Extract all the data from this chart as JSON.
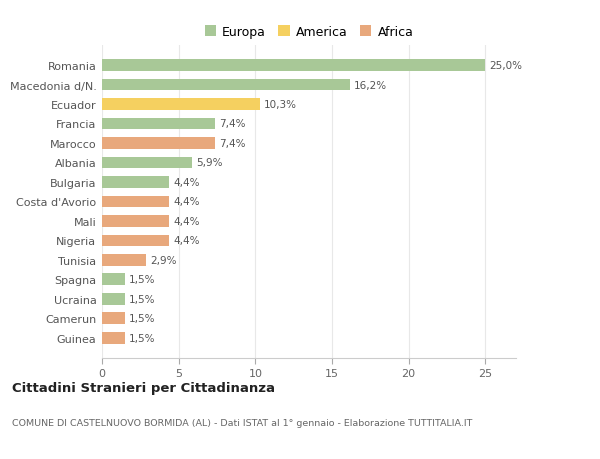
{
  "categories": [
    "Guinea",
    "Camerun",
    "Ucraina",
    "Spagna",
    "Tunisia",
    "Nigeria",
    "Mali",
    "Costa d'Avorio",
    "Bulgaria",
    "Albania",
    "Marocco",
    "Francia",
    "Ecuador",
    "Macedonia d/N.",
    "Romania"
  ],
  "values": [
    1.5,
    1.5,
    1.5,
    1.5,
    2.9,
    4.4,
    4.4,
    4.4,
    4.4,
    5.9,
    7.4,
    7.4,
    10.3,
    16.2,
    25.0
  ],
  "continents": [
    "Africa",
    "Africa",
    "Europa",
    "Europa",
    "Africa",
    "Africa",
    "Africa",
    "Africa",
    "Europa",
    "Europa",
    "Africa",
    "Europa",
    "America",
    "Europa",
    "Europa"
  ],
  "labels": [
    "1,5%",
    "1,5%",
    "1,5%",
    "1,5%",
    "2,9%",
    "4,4%",
    "4,4%",
    "4,4%",
    "4,4%",
    "5,9%",
    "7,4%",
    "7,4%",
    "10,3%",
    "16,2%",
    "25,0%"
  ],
  "color_map": {
    "Europa": "#a8c897",
    "America": "#f5d060",
    "Africa": "#e8a87c"
  },
  "legend_items": [
    "Europa",
    "America",
    "Africa"
  ],
  "legend_colors": [
    "#a8c897",
    "#f5d060",
    "#e8a87c"
  ],
  "title": "Cittadini Stranieri per Cittadinanza",
  "subtitle": "COMUNE DI CASTELNUOVO BORMIDA (AL) - Dati ISTAT al 1° gennaio - Elaborazione TUTTITALIA.IT",
  "xlim": [
    0,
    27
  ],
  "xticks": [
    0,
    5,
    10,
    15,
    20,
    25
  ],
  "background_color": "#ffffff",
  "grid_color": "#e8e8e8",
  "bar_height": 0.6
}
